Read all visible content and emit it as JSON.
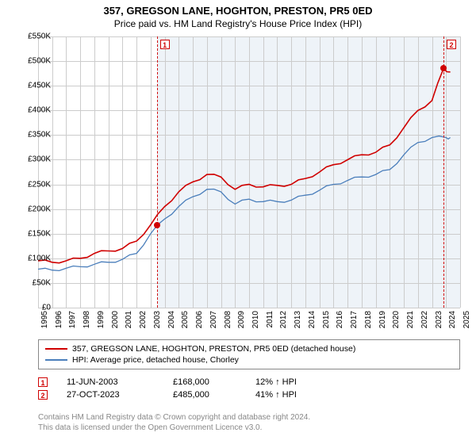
{
  "title": "357, GREGSON LANE, HOGHTON, PRESTON, PR5 0ED",
  "subtitle": "Price paid vs. HM Land Registry's House Price Index (HPI)",
  "chart": {
    "type": "line",
    "background_color": "#ffffff",
    "shade_color": "#eef3f8",
    "grid_color": "#cccccc",
    "ylim": [
      0,
      550000
    ],
    "ytick_step": 50000,
    "ytick_prefix": "£",
    "ytick_suffix": "K",
    "ytick_divisor": 1000,
    "xlim": [
      1995,
      2025
    ],
    "xtick_step": 1,
    "series": [
      {
        "name": "price_paid",
        "label": "357, GREGSON LANE, HOGHTON, PRESTON, PR5 0ED (detached house)",
        "color": "#d00000",
        "line_width": 1.6,
        "data": [
          [
            1995,
            95000
          ],
          [
            1996,
            92000
          ],
          [
            1997,
            95000
          ],
          [
            1998,
            100000
          ],
          [
            1999,
            110000
          ],
          [
            2000,
            115000
          ],
          [
            2001,
            120000
          ],
          [
            2002,
            135000
          ],
          [
            2003,
            168000
          ],
          [
            2004,
            205000
          ],
          [
            2005,
            235000
          ],
          [
            2006,
            255000
          ],
          [
            2007,
            270000
          ],
          [
            2008,
            265000
          ],
          [
            2009,
            240000
          ],
          [
            2010,
            250000
          ],
          [
            2011,
            245000
          ],
          [
            2012,
            248000
          ],
          [
            2013,
            250000
          ],
          [
            2014,
            262000
          ],
          [
            2015,
            275000
          ],
          [
            2016,
            290000
          ],
          [
            2017,
            300000
          ],
          [
            2018,
            310000
          ],
          [
            2019,
            315000
          ],
          [
            2020,
            330000
          ],
          [
            2021,
            365000
          ],
          [
            2022,
            400000
          ],
          [
            2023,
            420000
          ],
          [
            2023.82,
            485000
          ],
          [
            2024.3,
            478000
          ]
        ]
      },
      {
        "name": "hpi",
        "label": "HPI: Average price, detached house, Chorley",
        "color": "#4a7ebb",
        "line_width": 1.3,
        "data": [
          [
            1995,
            78000
          ],
          [
            1996,
            76000
          ],
          [
            1997,
            80000
          ],
          [
            1998,
            83000
          ],
          [
            1999,
            88000
          ],
          [
            2000,
            92000
          ],
          [
            2001,
            98000
          ],
          [
            2002,
            110000
          ],
          [
            2003,
            150000
          ],
          [
            2004,
            180000
          ],
          [
            2005,
            205000
          ],
          [
            2006,
            225000
          ],
          [
            2007,
            240000
          ],
          [
            2008,
            235000
          ],
          [
            2009,
            210000
          ],
          [
            2010,
            220000
          ],
          [
            2011,
            215000
          ],
          [
            2012,
            215000
          ],
          [
            2013,
            218000
          ],
          [
            2014,
            228000
          ],
          [
            2015,
            238000
          ],
          [
            2016,
            250000
          ],
          [
            2017,
            258000
          ],
          [
            2018,
            265000
          ],
          [
            2019,
            270000
          ],
          [
            2020,
            280000
          ],
          [
            2021,
            310000
          ],
          [
            2022,
            335000
          ],
          [
            2023,
            345000
          ],
          [
            2024,
            345000
          ],
          [
            2024.3,
            345000
          ]
        ]
      }
    ],
    "markers": [
      {
        "n": "1",
        "x": 2003.44,
        "y": 168000
      },
      {
        "n": "2",
        "x": 2023.82,
        "y": 485000
      }
    ],
    "shade_start": 2003.44
  },
  "legend": {
    "items": [
      {
        "color": "#d00000",
        "label": "357, GREGSON LANE, HOGHTON, PRESTON, PR5 0ED (detached house)"
      },
      {
        "color": "#4a7ebb",
        "label": "HPI: Average price, detached house, Chorley"
      }
    ]
  },
  "sales": [
    {
      "n": "1",
      "date": "11-JUN-2003",
      "price": "£168,000",
      "pct": "12% ↑ HPI"
    },
    {
      "n": "2",
      "date": "27-OCT-2023",
      "price": "£485,000",
      "pct": "41% ↑ HPI"
    }
  ],
  "footer": {
    "line1": "Contains HM Land Registry data © Crown copyright and database right 2024.",
    "line2": "This data is licensed under the Open Government Licence v3.0."
  }
}
